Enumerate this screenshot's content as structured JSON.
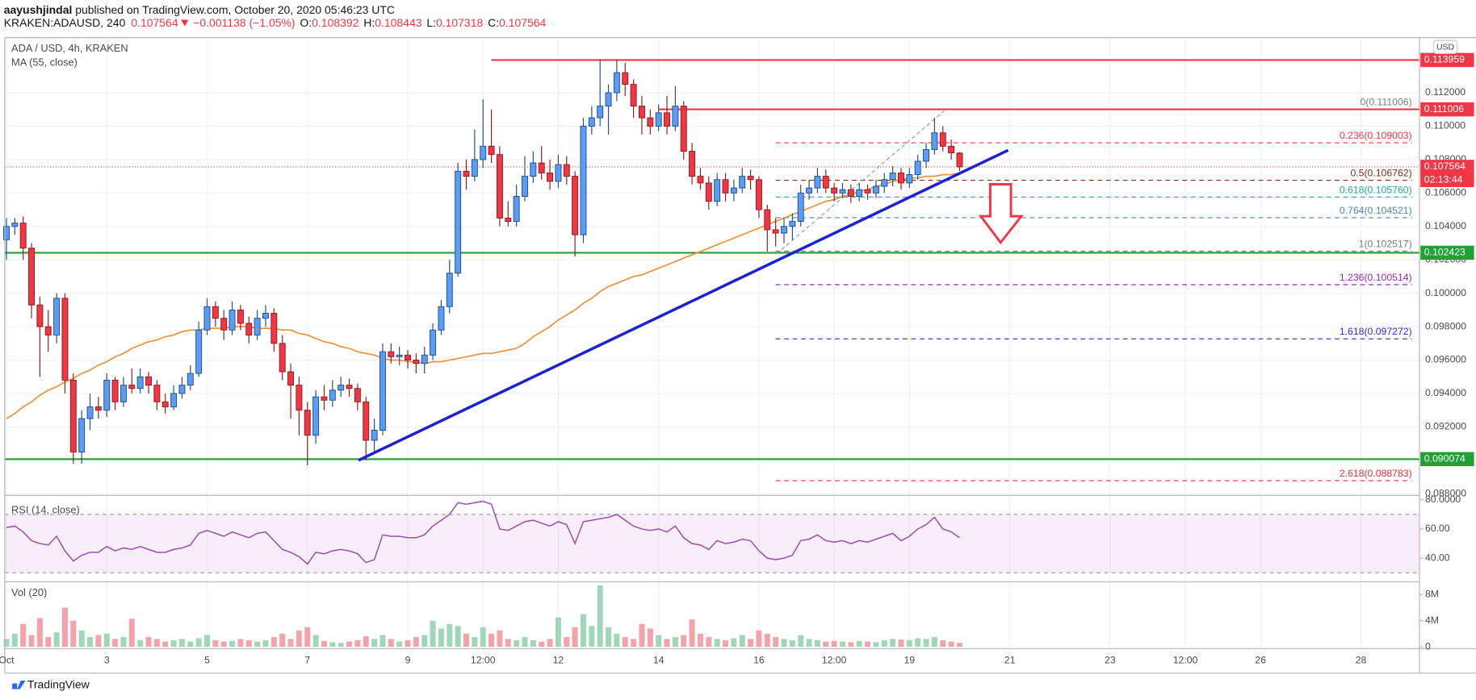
{
  "header": {
    "author": "aayushjindal",
    "published": " published on TradingView.com, October 20, 2020 05:46:23 UTC",
    "symbol": "KRAKEN:ADAUSD, 240",
    "change": "−0.001138 (−1.05%)",
    "ohlc_labels": [
      "O:",
      "H:",
      "L:",
      "C:"
    ]
  },
  "chart_data": {
    "type": "candlestick",
    "title": "ADA / USD, 4h, KRAKEN",
    "currency": "USD",
    "up_color": "#5b9cf6",
    "down_color": "#f23645",
    "grid": true,
    "candles": [
      [
        0.1032,
        0.1045,
        0.102,
        0.104
      ],
      [
        0.104,
        0.1045,
        0.1035,
        0.1042
      ],
      [
        0.1042,
        0.1046,
        0.102,
        0.1027
      ],
      [
        0.1027,
        0.103,
        0.0985,
        0.0993
      ],
      [
        0.0993,
        0.0998,
        0.095,
        0.098
      ],
      [
        0.098,
        0.099,
        0.0965,
        0.0975
      ],
      [
        0.0975,
        0.1,
        0.097,
        0.0997
      ],
      [
        0.0997,
        0.1,
        0.094,
        0.0948
      ],
      [
        0.0948,
        0.0952,
        0.0898,
        0.0905
      ],
      [
        0.0905,
        0.093,
        0.0898,
        0.0925
      ],
      [
        0.0925,
        0.094,
        0.0918,
        0.0932
      ],
      [
        0.0932,
        0.0938,
        0.0925,
        0.093
      ],
      [
        0.093,
        0.0952,
        0.0926,
        0.0948
      ],
      [
        0.0948,
        0.095,
        0.093,
        0.0935
      ],
      [
        0.0935,
        0.095,
        0.0932,
        0.0945
      ],
      [
        0.0945,
        0.0955,
        0.094,
        0.0943
      ],
      [
        0.0943,
        0.0955,
        0.094,
        0.095
      ],
      [
        0.095,
        0.0953,
        0.094,
        0.0945
      ],
      [
        0.0945,
        0.0948,
        0.093,
        0.0935
      ],
      [
        0.0935,
        0.094,
        0.0928,
        0.0932
      ],
      [
        0.0932,
        0.0945,
        0.093,
        0.094
      ],
      [
        0.094,
        0.095,
        0.0937,
        0.0945
      ],
      [
        0.0945,
        0.0957,
        0.0942,
        0.0952
      ],
      [
        0.0952,
        0.0983,
        0.095,
        0.0978
      ],
      [
        0.0978,
        0.0997,
        0.0975,
        0.0992
      ],
      [
        0.0992,
        0.0995,
        0.098,
        0.0985
      ],
      [
        0.0985,
        0.099,
        0.0972,
        0.0978
      ],
      [
        0.0978,
        0.0995,
        0.0975,
        0.099
      ],
      [
        0.099,
        0.0993,
        0.0978,
        0.0982
      ],
      [
        0.0982,
        0.0986,
        0.097,
        0.0975
      ],
      [
        0.0975,
        0.099,
        0.0972,
        0.0985
      ],
      [
        0.0985,
        0.0993,
        0.098,
        0.0988
      ],
      [
        0.0988,
        0.0991,
        0.0965,
        0.097
      ],
      [
        0.097,
        0.0975,
        0.0948,
        0.0953
      ],
      [
        0.0953,
        0.0958,
        0.0925,
        0.0945
      ],
      [
        0.0945,
        0.095,
        0.0915,
        0.093
      ],
      [
        0.093,
        0.0935,
        0.0897,
        0.0915
      ],
      [
        0.0915,
        0.0942,
        0.091,
        0.0938
      ],
      [
        0.0938,
        0.0945,
        0.093,
        0.0936
      ],
      [
        0.0936,
        0.0948,
        0.0932,
        0.0942
      ],
      [
        0.0942,
        0.095,
        0.0938,
        0.0945
      ],
      [
        0.0945,
        0.0949,
        0.0938,
        0.0943
      ],
      [
        0.0943,
        0.0946,
        0.093,
        0.0935
      ],
      [
        0.0935,
        0.0938,
        0.09,
        0.0912
      ],
      [
        0.0912,
        0.0925,
        0.0905,
        0.0918
      ],
      [
        0.0918,
        0.097,
        0.0915,
        0.0965
      ],
      [
        0.0965,
        0.097,
        0.0958,
        0.0962
      ],
      [
        0.0962,
        0.0968,
        0.0957,
        0.0963
      ],
      [
        0.0963,
        0.0966,
        0.0955,
        0.096
      ],
      [
        0.096,
        0.0964,
        0.0952,
        0.0958
      ],
      [
        0.0958,
        0.0968,
        0.0952,
        0.0963
      ],
      [
        0.0963,
        0.0982,
        0.096,
        0.0978
      ],
      [
        0.0978,
        0.0996,
        0.0975,
        0.0992
      ],
      [
        0.0992,
        0.102,
        0.0988,
        0.1012
      ],
      [
        0.1012,
        0.1078,
        0.101,
        0.1073
      ],
      [
        0.1073,
        0.108,
        0.1062,
        0.107
      ],
      [
        0.107,
        0.1098,
        0.1067,
        0.108
      ],
      [
        0.108,
        0.1116,
        0.1075,
        0.1088
      ],
      [
        0.1088,
        0.111,
        0.1078,
        0.1083
      ],
      [
        0.1083,
        0.1088,
        0.104,
        0.1045
      ],
      [
        0.1045,
        0.1055,
        0.104,
        0.1043
      ],
      [
        0.1043,
        0.1065,
        0.104,
        0.1058
      ],
      [
        0.1058,
        0.1082,
        0.1055,
        0.107
      ],
      [
        0.107,
        0.1085,
        0.1066,
        0.1078
      ],
      [
        0.1078,
        0.1088,
        0.1068,
        0.1072
      ],
      [
        0.1072,
        0.108,
        0.1062,
        0.1067
      ],
      [
        0.1067,
        0.1083,
        0.1063,
        0.1077
      ],
      [
        0.1077,
        0.1082,
        0.1065,
        0.107
      ],
      [
        0.107,
        0.1073,
        0.1022,
        0.1035
      ],
      [
        0.1035,
        0.1105,
        0.103,
        0.11
      ],
      [
        0.11,
        0.1112,
        0.1095,
        0.1105
      ],
      [
        0.1105,
        0.114,
        0.11,
        0.1112
      ],
      [
        0.1112,
        0.1125,
        0.1095,
        0.112
      ],
      [
        0.112,
        0.114,
        0.1115,
        0.1132
      ],
      [
        0.1132,
        0.1138,
        0.1118,
        0.1125
      ],
      [
        0.1125,
        0.1128,
        0.1105,
        0.1112
      ],
      [
        0.1112,
        0.1118,
        0.1095,
        0.1105
      ],
      [
        0.1105,
        0.111,
        0.1095,
        0.11
      ],
      [
        0.11,
        0.1113,
        0.1097,
        0.1108
      ],
      [
        0.1108,
        0.1118,
        0.1095,
        0.11
      ],
      [
        0.11,
        0.1124,
        0.1097,
        0.1112
      ],
      [
        0.1112,
        0.1115,
        0.108,
        0.1085
      ],
      [
        0.1085,
        0.109,
        0.1065,
        0.107
      ],
      [
        0.107,
        0.1075,
        0.1062,
        0.1066
      ],
      [
        0.1066,
        0.107,
        0.105,
        0.1055
      ],
      [
        0.1055,
        0.1072,
        0.1052,
        0.1068
      ],
      [
        0.1068,
        0.1072,
        0.1055,
        0.106
      ],
      [
        0.106,
        0.1068,
        0.1055,
        0.1063
      ],
      [
        0.1063,
        0.1075,
        0.106,
        0.107
      ],
      [
        0.107,
        0.1074,
        0.1062,
        0.1068
      ],
      [
        0.1068,
        0.107,
        0.1045,
        0.105
      ],
      [
        0.105,
        0.1053,
        0.1025,
        0.1038
      ],
      [
        0.1038,
        0.1045,
        0.1028,
        0.1036
      ],
      [
        0.1036,
        0.1045,
        0.103,
        0.104
      ],
      [
        0.104,
        0.1048,
        0.1032,
        0.1043
      ],
      [
        0.1043,
        0.1065,
        0.104,
        0.106
      ],
      [
        0.106,
        0.1068,
        0.1056,
        0.1063
      ],
      [
        0.1063,
        0.1075,
        0.106,
        0.107
      ],
      [
        0.107,
        0.1074,
        0.106,
        0.1063
      ],
      [
        0.1063,
        0.1066,
        0.1055,
        0.106
      ],
      [
        0.106,
        0.1066,
        0.1057,
        0.1062
      ],
      [
        0.1062,
        0.1065,
        0.1054,
        0.1058
      ],
      [
        0.1058,
        0.1066,
        0.1055,
        0.1062
      ],
      [
        0.1062,
        0.1065,
        0.1056,
        0.106
      ],
      [
        0.106,
        0.1068,
        0.1057,
        0.1064
      ],
      [
        0.1064,
        0.1072,
        0.106,
        0.1068
      ],
      [
        0.1068,
        0.1076,
        0.1064,
        0.1072
      ],
      [
        0.1072,
        0.1075,
        0.1062,
        0.1066
      ],
      [
        0.1066,
        0.1075,
        0.1063,
        0.1071
      ],
      [
        0.1071,
        0.1083,
        0.1068,
        0.1079
      ],
      [
        0.1079,
        0.109,
        0.1075,
        0.1086
      ],
      [
        0.1086,
        0.1105,
        0.1083,
        0.1096
      ],
      [
        0.1096,
        0.11,
        0.1085,
        0.1088
      ],
      [
        0.1088,
        0.1092,
        0.108,
        0.1084
      ],
      [
        0.108392,
        0.108443,
        0.107318,
        0.107564
      ]
    ],
    "xlim": [
      -0.2,
      169
    ],
    "xticks": [
      {
        "value": 0,
        "label": "Oct"
      },
      {
        "value": 12,
        "label": "3"
      },
      {
        "value": 24,
        "label": "5"
      },
      {
        "value": 36,
        "label": "7"
      },
      {
        "value": 48,
        "label": "9"
      },
      {
        "value": 57,
        "label": "12:00"
      },
      {
        "value": 66,
        "label": "12"
      },
      {
        "value": 78,
        "label": "14"
      },
      {
        "value": 90,
        "label": "16"
      },
      {
        "value": 99,
        "label": "12:00"
      },
      {
        "value": 108,
        "label": "19"
      },
      {
        "value": 120,
        "label": "21"
      },
      {
        "value": 132,
        "label": "23"
      },
      {
        "value": 141,
        "label": "12:00"
      },
      {
        "value": 150,
        "label": "26"
      },
      {
        "value": 162,
        "label": "28"
      }
    ],
    "ylim": [
      0.0879,
      0.1153
    ],
    "yticks": [
      {
        "value": 0.088,
        "label": "0.088000"
      },
      {
        "value": 0.09,
        "label": "0.090000"
      },
      {
        "value": 0.092,
        "label": "0.092000"
      },
      {
        "value": 0.094,
        "label": "0.094000"
      },
      {
        "value": 0.096,
        "label": "0.096000"
      },
      {
        "value": 0.098,
        "label": "0.098000"
      },
      {
        "value": 0.1,
        "label": "0.100000"
      },
      {
        "value": 0.102,
        "label": "0.102000"
      },
      {
        "value": 0.104,
        "label": "0.104000"
      },
      {
        "value": 0.106,
        "label": "0.106000"
      },
      {
        "value": 0.108,
        "label": "0.108000"
      },
      {
        "value": 0.11,
        "label": "0.110000"
      },
      {
        "value": 0.112,
        "label": "0.112000"
      }
    ],
    "ma": {
      "name": "MA (55, close)",
      "color": "#ef8f2f",
      "values": [
        0.0925,
        0.0928,
        0.0932,
        0.0935,
        0.0939,
        0.0942,
        0.0944,
        0.0947,
        0.0949,
        0.0952,
        0.0954,
        0.0957,
        0.0959,
        0.0962,
        0.0964,
        0.0967,
        0.0969,
        0.0971,
        0.0972,
        0.0974,
        0.0975,
        0.0977,
        0.0978,
        0.0978,
        0.0979,
        0.0979,
        0.0979,
        0.098,
        0.098,
        0.098,
        0.0979,
        0.0979,
        0.0979,
        0.0978,
        0.0978,
        0.0976,
        0.0975,
        0.0973,
        0.0971,
        0.097,
        0.0968,
        0.0967,
        0.0965,
        0.0964,
        0.0963,
        0.0961,
        0.096,
        0.096,
        0.0959,
        0.0959,
        0.0958,
        0.0959,
        0.0959,
        0.096,
        0.0961,
        0.0962,
        0.0963,
        0.0964,
        0.0964,
        0.0965,
        0.0966,
        0.0967,
        0.097,
        0.0974,
        0.0977,
        0.098,
        0.0984,
        0.0987,
        0.099,
        0.0994,
        0.0997,
        0.1001,
        0.1004,
        0.1006,
        0.1008,
        0.101,
        0.1011,
        0.1013,
        0.1015,
        0.1017,
        0.1019,
        0.1021,
        0.1023,
        0.1025,
        0.1027,
        0.1029,
        0.1031,
        0.1033,
        0.1035,
        0.1037,
        0.1039,
        0.1041,
        0.1043,
        0.1045,
        0.1047,
        0.1049,
        0.1051,
        0.1053,
        0.1055,
        0.1056,
        0.1058,
        0.1059,
        0.1061,
        0.1062,
        0.1064,
        0.1065,
        0.1067,
        0.1068,
        0.1069,
        0.1069,
        0.107,
        0.107,
        0.1071,
        0.1071,
        0.1072
      ]
    },
    "levels": [
      {
        "value": 0.113959,
        "color": "#f23645"
      },
      {
        "value": 0.111006,
        "color": "#f23645"
      },
      {
        "value": 0.102423,
        "color": "#22a033"
      },
      {
        "value": 0.090074,
        "color": "#22a033"
      }
    ],
    "countdown": "02:13:44",
    "trendline": {
      "color": "#1c22d4",
      "x": [
        42.1,
        119.8
      ],
      "values": [
        0.09,
        0.10856
      ]
    },
    "fib": [
      {
        "label": "0(0.111006)",
        "value": 0.111006,
        "color": "#787b86"
      },
      {
        "label": "0.236(0.109003)",
        "value": 0.109003,
        "color": "#f23645"
      },
      {
        "label": "0.5(0.106762)",
        "value": 0.106762,
        "color": "#8b2b0f"
      },
      {
        "label": "0.618(0.105760)",
        "value": 0.10576,
        "color": "#22ab94"
      },
      {
        "label": "0.764(0.104521)",
        "value": 0.104521,
        "color": "#3d8ac7"
      },
      {
        "label": "1(0.102517)",
        "value": 0.102517,
        "color": "#787b86"
      },
      {
        "label": "1.236(0.100514)",
        "value": 0.100514,
        "color": "#9c27b0"
      },
      {
        "label": "1.618(0.097272)",
        "value": 0.097272,
        "color": "#2b2bd1"
      },
      {
        "label": "2.618(0.088783)",
        "value": 0.088783,
        "color": "#e0313c"
      }
    ],
    "rsi": {
      "name": "RSI (14, close)",
      "color": "#9c4fb0",
      "ylim": [
        25,
        83
      ],
      "bands": [
        30,
        70
      ],
      "yticks": [
        {
          "value": 40,
          "label": "40.00"
        },
        {
          "value": 60,
          "label": "60.00"
        },
        {
          "value": 80,
          "label": "80.0000"
        }
      ],
      "values": [
        61,
        62,
        58,
        52,
        50,
        49,
        55,
        45,
        38,
        42,
        44,
        44,
        48,
        45,
        47,
        46,
        48,
        46,
        44,
        44,
        46,
        47,
        49,
        57,
        59,
        57,
        55,
        58,
        56,
        54,
        57,
        58,
        52,
        46,
        44,
        41,
        36,
        44,
        43,
        45,
        46,
        45,
        43,
        37,
        39,
        56,
        55,
        55,
        54,
        54,
        56,
        62,
        66,
        70,
        78,
        77,
        78,
        79,
        77,
        60,
        59,
        62,
        65,
        66,
        64,
        62,
        65,
        63,
        50,
        65,
        66,
        67,
        68,
        70,
        66,
        62,
        60,
        59,
        60,
        58,
        62,
        54,
        50,
        49,
        46,
        52,
        50,
        51,
        53,
        52,
        45,
        40,
        39,
        40,
        42,
        52,
        53,
        56,
        52,
        51,
        52,
        50,
        52,
        51,
        53,
        55,
        57,
        52,
        55,
        60,
        63,
        68,
        60,
        58,
        54
      ]
    },
    "volume": {
      "name": "Vol (20)",
      "up_color": "#9fd8b9",
      "down_color": "#f5a3a9",
      "ylim": [
        0,
        9.5
      ],
      "yticks": [
        0,
        {
          "value": 4,
          "label": "4M"
        },
        {
          "value": 8,
          "label": "8M"
        }
      ],
      "values": [
        1.2,
        2,
        3.5,
        1.8,
        4.4,
        1.5,
        2.2,
        6,
        4,
        2.5,
        1.5,
        1.8,
        2,
        1.2,
        1.5,
        4.3,
        1,
        1.5,
        1.2,
        0.8,
        1,
        1.2,
        0.8,
        1.3,
        1.8,
        1,
        0.8,
        0.9,
        1.2,
        1,
        0.8,
        1,
        1.5,
        2,
        1.2,
        2.5,
        3,
        1.8,
        0.9,
        0.7,
        0.6,
        0.8,
        1,
        1.6,
        1.2,
        1.8,
        1.2,
        0.8,
        1,
        1.5,
        1.8,
        4,
        2.8,
        3.5,
        3.2,
        2,
        1.5,
        3,
        2,
        2.5,
        1.2,
        1,
        1.5,
        1,
        0.8,
        1.2,
        4.5,
        1.5,
        3,
        5,
        3.2,
        9.4,
        3,
        2,
        1.5,
        1.2,
        3.5,
        2.8,
        1.8,
        1.2,
        1.5,
        1.8,
        4.2,
        2,
        1.5,
        1.2,
        1,
        1.3,
        1.8,
        1.2,
        2.5,
        2,
        1.5,
        1.2,
        1,
        1.8,
        1.2,
        1,
        0.8,
        0.9,
        0.8,
        0.7,
        0.9,
        0.8,
        0.7,
        1,
        1.2,
        1.1,
        1,
        1.3,
        1.2,
        1.5,
        1,
        0.8,
        0.6
      ]
    }
  },
  "footer": "TradingView"
}
